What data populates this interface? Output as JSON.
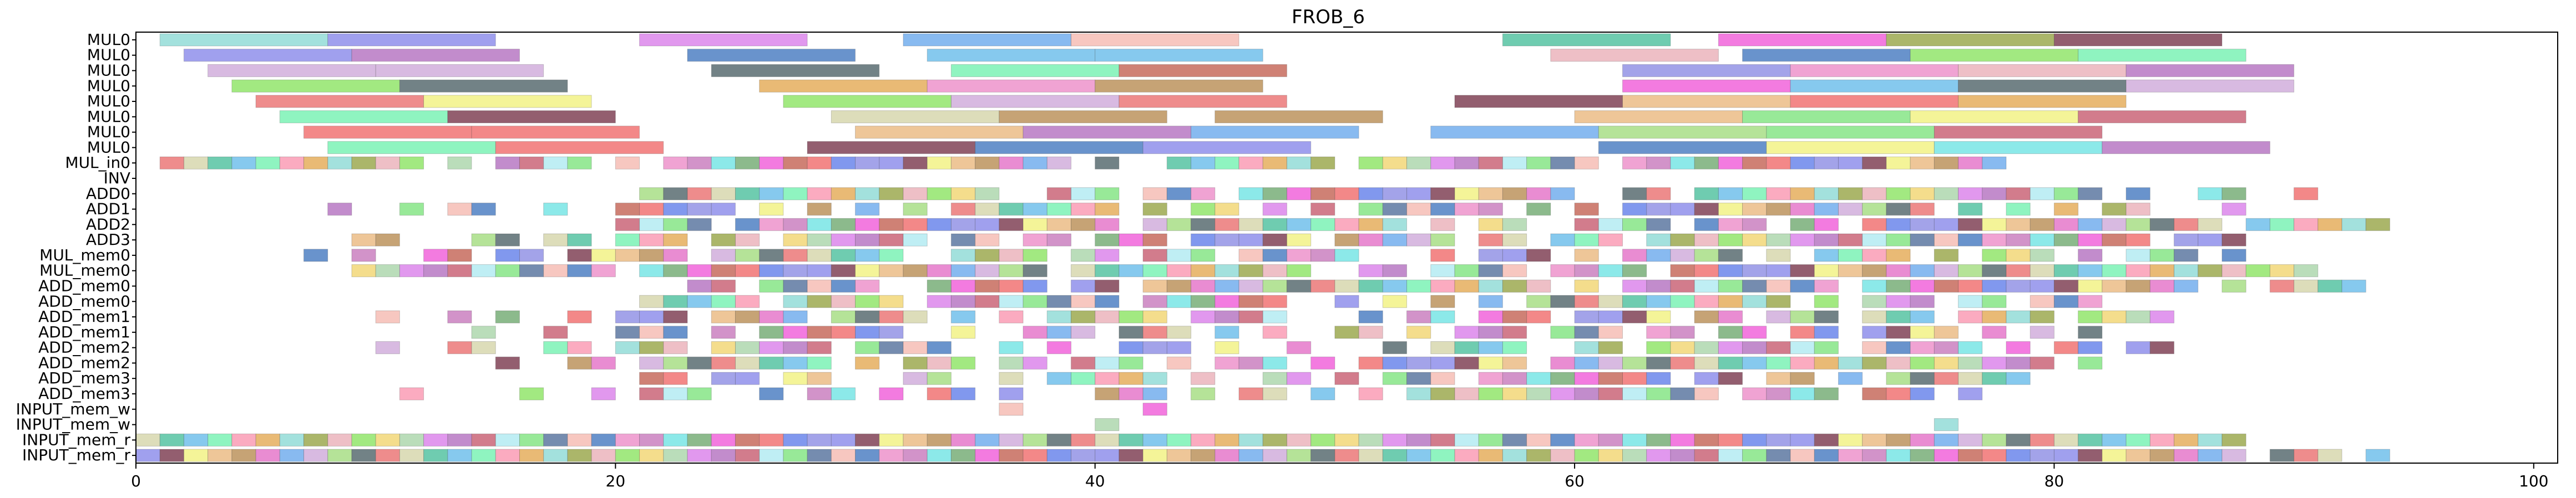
{
  "chart_data": {
    "type": "gantt",
    "title": "FROB_6",
    "xlabel": "",
    "ylabel": "",
    "xlim": [
      0,
      101
    ],
    "xticks": [
      0,
      20,
      40,
      60,
      80,
      100
    ],
    "grid": false,
    "rows": [
      "MUL0",
      "MUL0",
      "MUL0",
      "MUL0",
      "MUL0",
      "MUL0",
      "MUL0",
      "MUL0",
      "MUL_in0",
      "INV",
      "ADD0",
      "ADD1",
      "ADD2",
      "ADD3",
      "MUL_mem0",
      "MUL_mem0",
      "ADD_mem0",
      "ADD_mem0",
      "ADD_mem1",
      "ADD_mem1",
      "ADD_mem2",
      "ADD_mem2",
      "ADD_mem3",
      "ADD_mem3",
      "INPUT_mem_w",
      "INPUT_mem_w",
      "INPUT_mem_r",
      "INPUT_mem_r"
    ],
    "palette": [
      "#7fd6d0",
      "#7b7be8",
      "#d670e8",
      "#5aa0ea",
      "#f4b2a8",
      "#38b892",
      "#ee48d4",
      "#8a9a30",
      "#6a2038",
      "#ab5fb8",
      "#c9a0d6",
      "#2f6ab8",
      "#58b4e8",
      "#bd5040",
      "#e8a6b0",
      "#f0f070",
      "#c04a60",
      "#98d870",
      "#ea80c2",
      "#64f0a8",
      "#ee5a5a",
      "#7ee050",
      "#e8b070",
      "#a6e8f0",
      "#3b5258",
      "#c06ab4",
      "#fa8aa8",
      "#5070e8",
      "#f0d060",
      "#b08040",
      "#70e070",
      "#e86060",
      "#60e0e0",
      "#e0a040",
      "#8080e0",
      "#a0d0a0",
      "#e060c0",
      "#406090",
      "#d0d0a0",
      "#60a060"
    ],
    "bars": [
      [
        0,
        1,
        8,
        0
      ],
      [
        0,
        8,
        15,
        1
      ],
      [
        0,
        21,
        28,
        2
      ],
      [
        0,
        32,
        39,
        3
      ],
      [
        0,
        39,
        46,
        4
      ],
      [
        0,
        57,
        64,
        5
      ],
      [
        0,
        66,
        73,
        6
      ],
      [
        0,
        73,
        80,
        7
      ],
      [
        0,
        80,
        87,
        8
      ],
      [
        1,
        2,
        9,
        1
      ],
      [
        1,
        9,
        16,
        9
      ],
      [
        1,
        23,
        30,
        11
      ],
      [
        1,
        33,
        40,
        12
      ],
      [
        1,
        40,
        47,
        12
      ],
      [
        1,
        59,
        66,
        14
      ],
      [
        1,
        67,
        74,
        11
      ],
      [
        1,
        74,
        81,
        21
      ],
      [
        1,
        81,
        88,
        19
      ],
      [
        2,
        3,
        10,
        10
      ],
      [
        2,
        10,
        17,
        10
      ],
      [
        2,
        24,
        31,
        24
      ],
      [
        2,
        34,
        41,
        19
      ],
      [
        2,
        41,
        48,
        13
      ],
      [
        2,
        62,
        69,
        34
      ],
      [
        2,
        69,
        76,
        18
      ],
      [
        2,
        76,
        83,
        14
      ],
      [
        2,
        83,
        90,
        9
      ],
      [
        3,
        4,
        11,
        21
      ],
      [
        3,
        11,
        18,
        24
      ],
      [
        3,
        26,
        33,
        33
      ],
      [
        3,
        33,
        40,
        18
      ],
      [
        3,
        40,
        47,
        29
      ],
      [
        3,
        62,
        69,
        6
      ],
      [
        3,
        69,
        76,
        12
      ],
      [
        3,
        76,
        83,
        24
      ],
      [
        3,
        83,
        90,
        10
      ],
      [
        4,
        5,
        12,
        31
      ],
      [
        4,
        12,
        19,
        15
      ],
      [
        4,
        27,
        34,
        21
      ],
      [
        4,
        34,
        41,
        10
      ],
      [
        4,
        41,
        48,
        31
      ],
      [
        4,
        55,
        62,
        8
      ],
      [
        4,
        62,
        69,
        22
      ],
      [
        4,
        69,
        76,
        20
      ],
      [
        4,
        76,
        83,
        33
      ],
      [
        5,
        6,
        13,
        19
      ],
      [
        5,
        13,
        20,
        8
      ],
      [
        5,
        29,
        36,
        38
      ],
      [
        5,
        36,
        43,
        29
      ],
      [
        5,
        45,
        52,
        29
      ],
      [
        5,
        60,
        67,
        22
      ],
      [
        5,
        67,
        74,
        30
      ],
      [
        5,
        74,
        81,
        15
      ],
      [
        5,
        81,
        88,
        16
      ],
      [
        6,
        7,
        14,
        20
      ],
      [
        6,
        14,
        21,
        20
      ],
      [
        6,
        30,
        37,
        22
      ],
      [
        6,
        37,
        44,
        9
      ],
      [
        6,
        44,
        51,
        3
      ],
      [
        6,
        54,
        61,
        3
      ],
      [
        6,
        61,
        68,
        17
      ],
      [
        6,
        68,
        75,
        30
      ],
      [
        6,
        75,
        82,
        16
      ],
      [
        7,
        8,
        15,
        19
      ],
      [
        7,
        15,
        22,
        20
      ],
      [
        7,
        28,
        35,
        8
      ],
      [
        7,
        35,
        42,
        11
      ],
      [
        7,
        42,
        49,
        1
      ],
      [
        7,
        61,
        68,
        11
      ],
      [
        7,
        68,
        75,
        15
      ],
      [
        7,
        75,
        82,
        32
      ],
      [
        7,
        82,
        89,
        9
      ]
    ],
    "cells": [
      [
        8,
        "0111111111110101111010111111111111111110100111111101111111111011111111111111110"
      ],
      [
        10,
        "0000000000000000000001111111111111110011101110111111111111110011011111111111111111010011001"
      ],
      [
        11,
        "0000000010010110010011111010101010111111101011010101111110101011111111111110101010110001"
      ],
      [
        12,
        "0000000000000000000011110111111111111111101111111111101011001111011101101111111111111110111111"
      ],
      [
        13,
        "0000000001100011011011101101111110110110111011111011111011011101111111111111111111110111"
      ],
      [
        14,
        "0000000101001101101111101111111100111101101110111110001011101011111010111101011101011101"
      ],
      [
        15,
        "0000000001111111111101111111111111111101111111111001101111011110111111111111111111111111111"
      ],
      [
        16,
        "000000000000000000000001101111100111110110111111111111111110101111111110111111111111110101111"
      ],
      [
        17,
        "0000000000000000000001111101111101111111101111110010101010111111111110101110110111"
      ],
      [
        18,
        "0000000000100101001011101111011110101011111011110001011011101111011011101110111101111"
      ],
      [
        19,
        "0000000000000010010011101011111100100111011101010011010111011101101101101111010101"
      ],
      [
        20,
        "0000000000100110011011101111101111001010011101001000101111001101111111101111101011011"
      ],
      [
        21,
        "0000000000000001001101111111101011101101110101110101111111011111111111111111111101"
      ],
      [
        22,
        "0000000000000000000001101101100011001011111010011010111011111111011011010111111"
      ],
      [
        23,
        "00000000000100001001011100101101011010001110101101010111111111111101111011101"
      ],
      [
        24,
        "0000000000000000000000000000000000001000001000"
      ],
      [
        25,
        "0000000000000000000000000000000000000000100000000000000000000000000000000001"
      ],
      [
        26,
        "1111111111111111111111111111111111111111111111111111111111111111111111111111111111111111"
      ],
      [
        27,
        "1111111111111111111111111111111111111111111111111111111111111111111111111111111111111111011101"
      ]
    ]
  }
}
